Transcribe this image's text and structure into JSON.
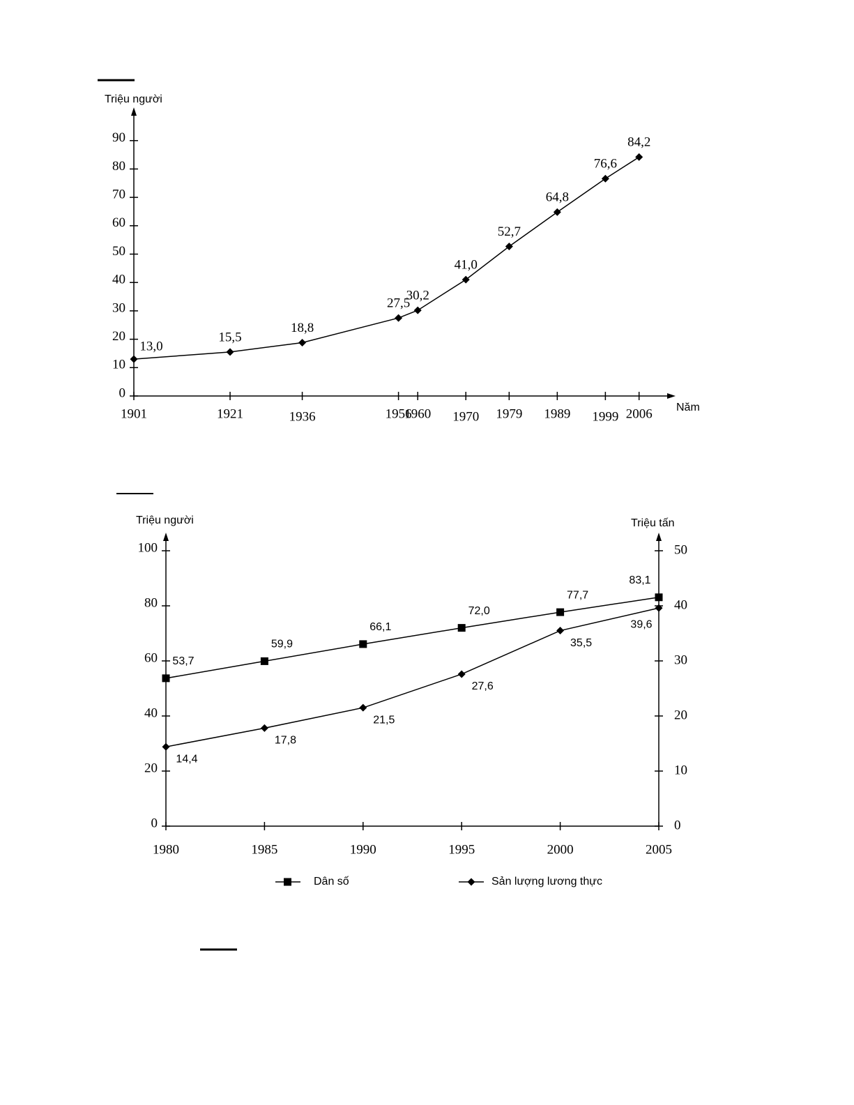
{
  "chart_data": [
    {
      "type": "line",
      "y_label": "Triệu người",
      "x_label": "Năm",
      "x": [
        1901,
        1921,
        1936,
        1956,
        1960,
        1970,
        1979,
        1989,
        1999,
        2006
      ],
      "values": [
        13.0,
        15.5,
        18.8,
        27.5,
        30.2,
        41.0,
        52.7,
        64.8,
        76.6,
        84.2
      ],
      "value_labels": [
        "13,0",
        "15,5",
        "18,8",
        "27,5",
        "30,2",
        "41,0",
        "52,7",
        "64,8",
        "76,6",
        "84,2"
      ],
      "color": "#000000",
      "marker": "diamond",
      "xlim": [
        1901,
        2013
      ],
      "xticks": [
        1901,
        1921,
        1936,
        1956,
        1960,
        1970,
        1979,
        1989,
        1999,
        2006
      ],
      "ylim": [
        0,
        100
      ],
      "yticks": [
        0,
        10,
        20,
        30,
        40,
        50,
        60,
        70,
        80,
        90
      ]
    },
    {
      "type": "line",
      "y_label": "Triệu người",
      "y2_label": "Triệu tấn",
      "categories": [
        "1980",
        "1985",
        "1990",
        "1995",
        "2000",
        "2005"
      ],
      "series": [
        {
          "name": "Dân số",
          "color": "#000000",
          "marker": "square",
          "values": [
            53.7,
            59.9,
            66.1,
            72.0,
            77.7,
            83.1
          ],
          "value_labels": [
            "53,7",
            "59,9",
            "66,1",
            "72,0",
            "77,7",
            "83,1"
          ]
        },
        {
          "name": "Sản lượng lương thực",
          "color": "#000000",
          "marker": "diamond",
          "axis": "y2",
          "values": [
            14.4,
            17.8,
            21.5,
            27.6,
            35.5,
            39.6
          ],
          "value_labels": [
            "14,4",
            "17,8",
            "21,5",
            "27,6",
            "35,5",
            "39,6"
          ]
        }
      ],
      "ylim": [
        0,
        100
      ],
      "yticks": [
        0,
        20,
        40,
        60,
        80,
        100
      ],
      "y2lim": [
        0,
        50
      ],
      "y2ticks": [
        0,
        10,
        20,
        30,
        40,
        50
      ]
    }
  ]
}
